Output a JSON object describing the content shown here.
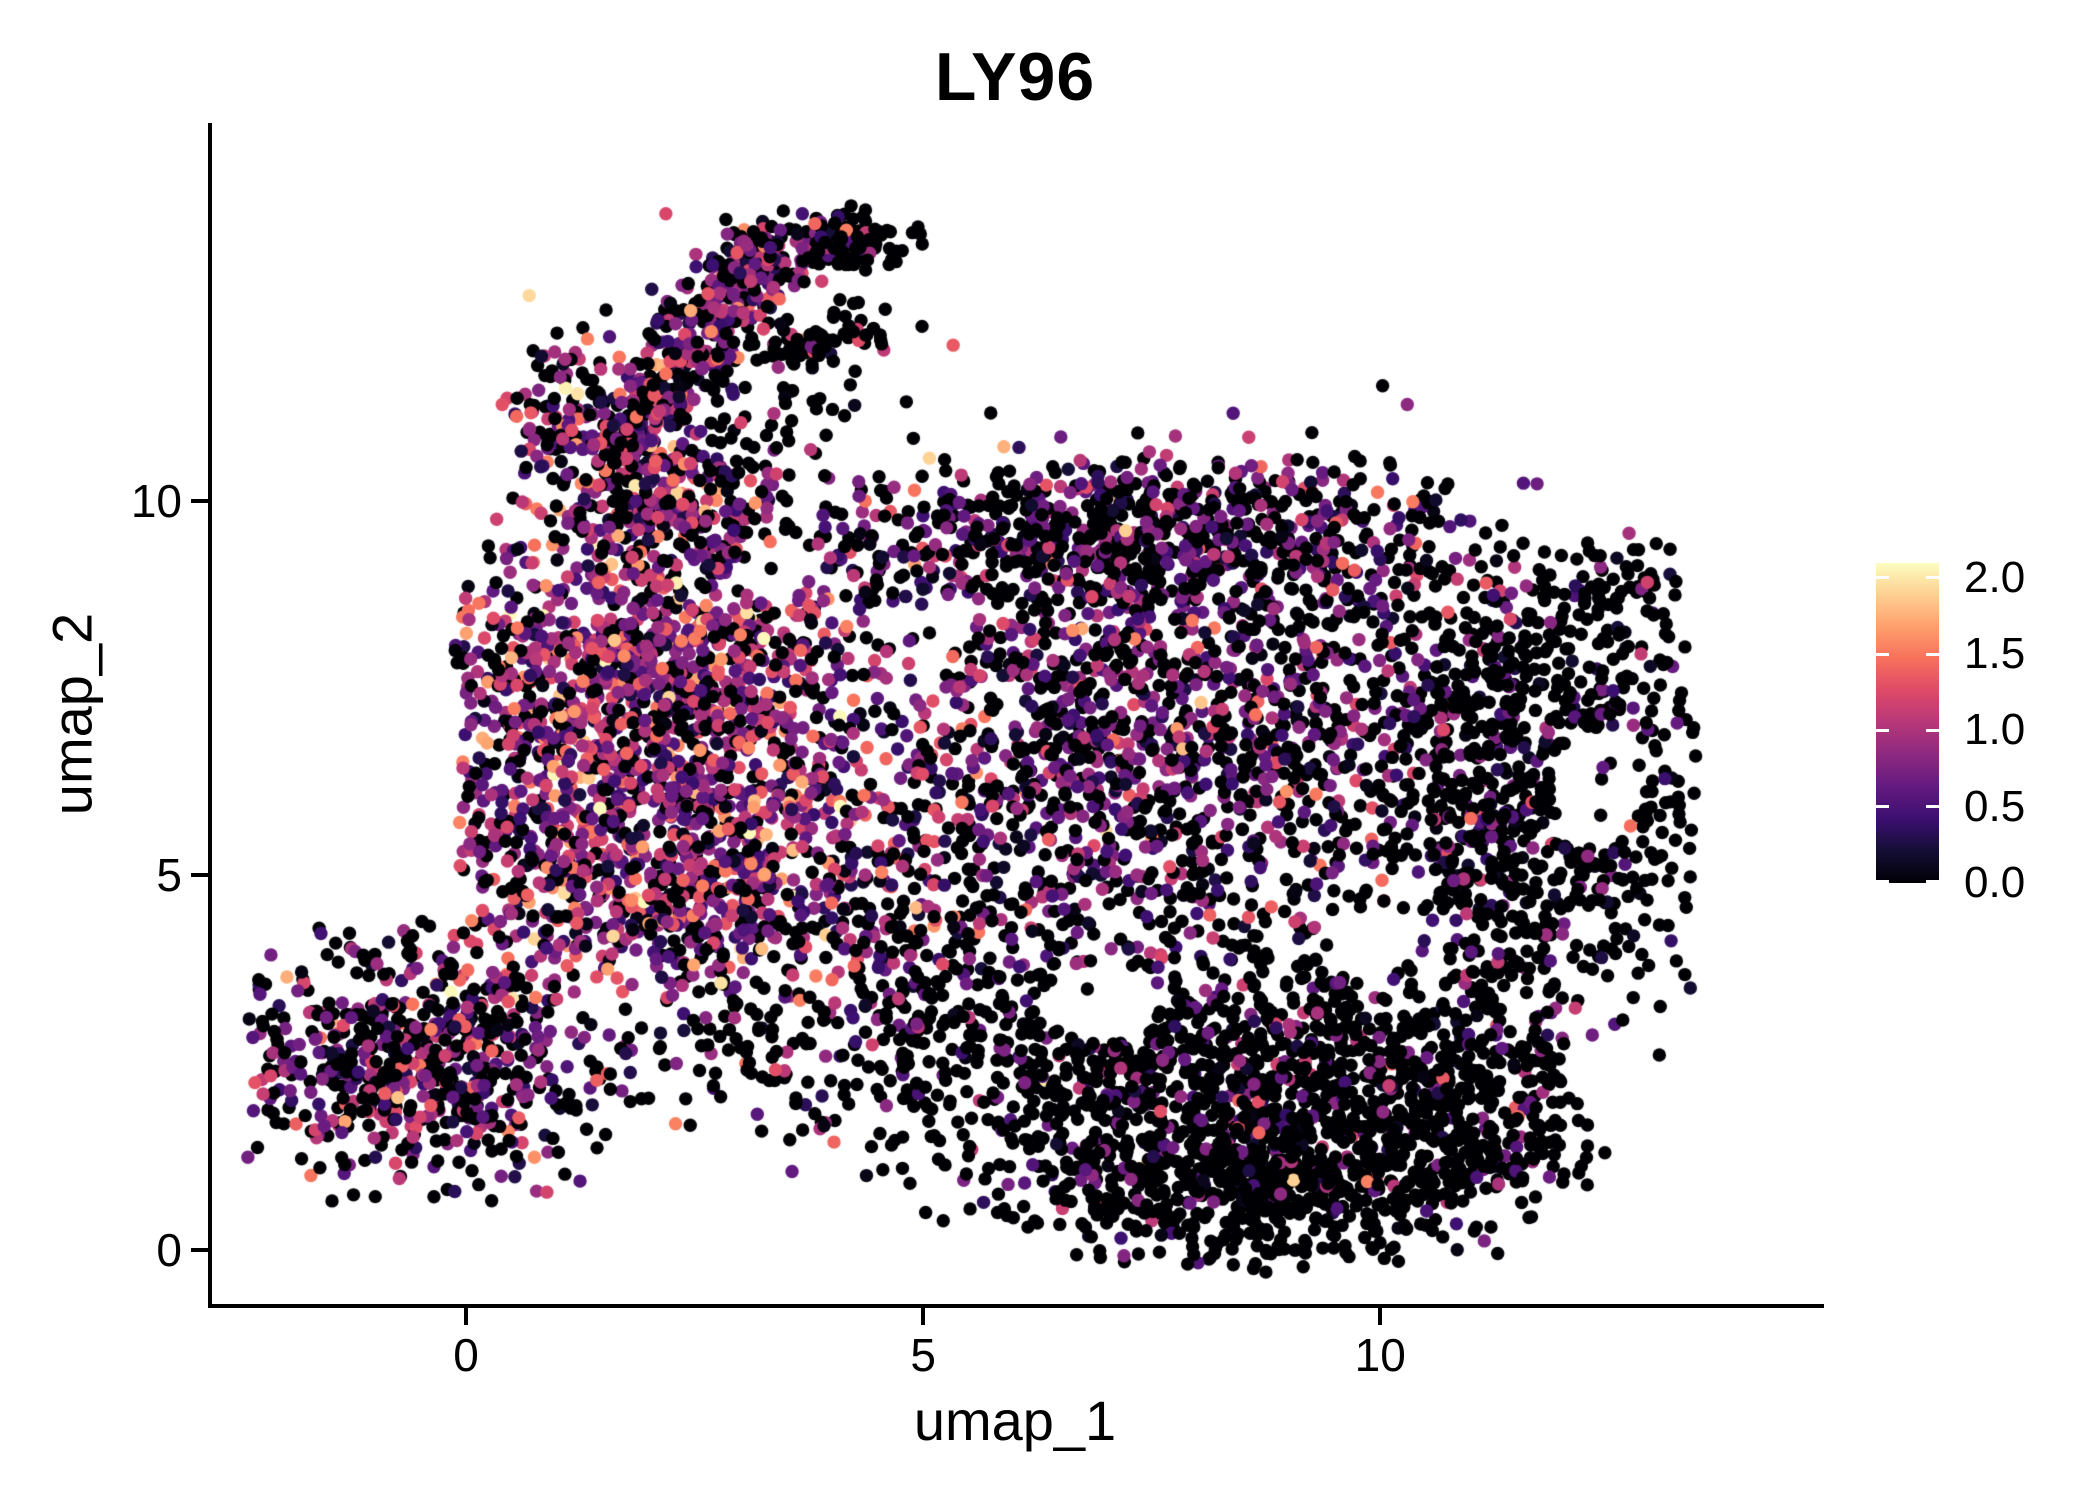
{
  "chart_data": {
    "type": "scatter",
    "title": "LY96",
    "xlabel": "umap_1",
    "ylabel": "umap_2",
    "xlim": [
      -2.8,
      14.81
    ],
    "ylim": [
      -0.75,
      15.04
    ],
    "x_ticks": [
      0,
      5,
      10
    ],
    "x_tick_labels": [
      "0",
      "5",
      "10"
    ],
    "y_ticks": [
      0,
      5,
      10
    ],
    "y_tick_labels": [
      "0",
      "5",
      "10"
    ],
    "grid": "off",
    "legend_position": "right",
    "point_radius_px": 6.7,
    "colorbar": {
      "vmin": 0,
      "vmax": 2.098,
      "ticks": [
        2.0,
        1.5,
        1.0,
        0.5,
        0.0
      ],
      "tick_labels": [
        "2.0",
        "1.5",
        "1.0",
        "0.5",
        "0.0"
      ],
      "colormap": "magma",
      "stops": [
        [
          0.0,
          "#000004"
        ],
        [
          0.1,
          "#140e36"
        ],
        [
          0.2,
          "#3b0f70"
        ],
        [
          0.3,
          "#641a80"
        ],
        [
          0.4,
          "#8c2981"
        ],
        [
          0.5,
          "#b73779"
        ],
        [
          0.6,
          "#de4968"
        ],
        [
          0.7,
          "#f7705c"
        ],
        [
          0.8,
          "#fe9f6d"
        ],
        [
          0.9,
          "#fecf92"
        ],
        [
          1.0,
          "#fcfdbf"
        ]
      ]
    },
    "generator": {
      "seed": 42,
      "value_max": 2.08,
      "edge_cut": {
        "x0": 10.3,
        "y0": 10.6,
        "slope": -0.75,
        "keep_prob": 0.12
      },
      "clusters": [
        {
          "name": "arm-band",
          "shape": "line",
          "n": 420,
          "x1": 1.55,
          "y1": 10.5,
          "x2": 3.3,
          "y2": 13.35,
          "perp": 0.28,
          "zf": 0.32,
          "mu": 0.8,
          "sd": 0.45
        },
        {
          "name": "arm-base",
          "shape": "gauss",
          "n": 170,
          "cx": 1.95,
          "cy": 10.05,
          "sx": 0.55,
          "sy": 0.4,
          "zf": 0.3,
          "mu": 0.9,
          "sd": 0.5
        },
        {
          "name": "hook-top",
          "shape": "line",
          "n": 120,
          "x1": 2.95,
          "y1": 13.3,
          "x2": 4.3,
          "y2": 13.5,
          "perp": 0.2,
          "zf": 0.55,
          "mu": 0.65,
          "sd": 0.35
        },
        {
          "name": "hook-tip",
          "shape": "gauss",
          "n": 60,
          "cx": 4.35,
          "cy": 13.4,
          "sx": 0.25,
          "sy": 0.2,
          "zf": 0.9,
          "mu": 0.5,
          "sd": 0.3
        },
        {
          "name": "hook-scatter",
          "shape": "line",
          "n": 70,
          "x1": 3.45,
          "y1": 11.95,
          "x2": 4.5,
          "y2": 12.35,
          "perp": 0.16,
          "zf": 0.8,
          "mu": 0.8,
          "sd": 0.45
        },
        {
          "name": "upper-sparse",
          "shape": "gauss",
          "n": 100,
          "cx": 3.0,
          "cy": 11.1,
          "sx": 0.85,
          "sy": 0.6,
          "zf": 0.85,
          "mu": 0.6,
          "sd": 0.3
        },
        {
          "name": "spur",
          "shape": "gauss",
          "n": 95,
          "cx": 1.1,
          "cy": 11.25,
          "sx": 0.3,
          "sy": 0.5,
          "zf": 0.42,
          "mu": 0.85,
          "sd": 0.5
        },
        {
          "name": "bridge",
          "shape": "gauss",
          "n": 70,
          "cx": 2.6,
          "cy": 9.75,
          "sx": 0.6,
          "sy": 0.45,
          "zf": 0.6,
          "mu": 0.7,
          "sd": 0.4
        },
        {
          "name": "left-dense-top",
          "shape": "gauss",
          "n": 950,
          "cx": 2.05,
          "cy": 7.7,
          "sx": 1.15,
          "sy": 1.1,
          "zf": 0.22,
          "mu": 0.92,
          "sd": 0.48,
          "clamp": {
            "xmin": -0.1
          }
        },
        {
          "name": "left-dense-bottom",
          "shape": "gauss",
          "n": 850,
          "cx": 2.3,
          "cy": 5.15,
          "sx": 1.3,
          "sy": 0.95,
          "zf": 0.25,
          "mu": 0.88,
          "sd": 0.48,
          "clamp": {
            "xmin": -0.1,
            "ymin": 3.3
          }
        },
        {
          "name": "left-edge",
          "shape": "gauss",
          "n": 130,
          "cx": 0.55,
          "cy": 6.7,
          "sx": 0.4,
          "sy": 1.4,
          "zf": 0.3,
          "mu": 0.85,
          "sd": 0.45,
          "clamp": {
            "xmin": -0.15
          }
        },
        {
          "name": "blob-top-band",
          "shape": "gauss",
          "n": 750,
          "cx": 7.3,
          "cy": 9.55,
          "sx": 1.95,
          "sy": 0.6,
          "zf": 0.55,
          "mu": 0.68,
          "sd": 0.38,
          "clamp": {
            "ymax": 10.6,
            "xmax": 10.8
          }
        },
        {
          "name": "blob-core",
          "shape": "gauss",
          "n": 1600,
          "cx": 7.4,
          "cy": 6.9,
          "sx": 2.05,
          "sy": 1.6,
          "zf": 0.47,
          "mu": 0.72,
          "sd": 0.4,
          "clamp": {
            "xmax": 11.5
          }
        },
        {
          "name": "blob-right",
          "shape": "gauss",
          "n": 800,
          "cx": 11.7,
          "cy": 6.3,
          "sx": 1.0,
          "sy": 1.7,
          "zf": 0.8,
          "mu": 0.55,
          "sd": 0.35,
          "clamp": {
            "xmax": 13.45
          }
        },
        {
          "name": "right-top-clump",
          "shape": "gauss",
          "n": 60,
          "cx": 12.55,
          "cy": 8.85,
          "sx": 0.4,
          "sy": 0.3,
          "zf": 0.85,
          "mu": 0.5,
          "sd": 0.3,
          "noedge": true
        },
        {
          "name": "blob-bottom",
          "shape": "gauss",
          "n": 1350,
          "cx": 8.3,
          "cy": 1.95,
          "sx": 2.0,
          "sy": 1.1,
          "zf": 0.8,
          "mu": 0.62,
          "sd": 0.4,
          "curve": {
            "x0": 8.6,
            "w": 2.6,
            "k": 0.3
          },
          "clamp": {
            "ymin": -0.3,
            "xmin": 4.3,
            "xmax": 12.0
          }
        },
        {
          "name": "bottom-right",
          "shape": "gauss",
          "n": 260,
          "cx": 10.9,
          "cy": 1.7,
          "sx": 0.85,
          "sy": 0.85,
          "zf": 0.85,
          "mu": 0.55,
          "sd": 0.35,
          "clamp": {
            "ymin": 0.2,
            "xmax": 12.3
          }
        },
        {
          "name": "bottom-dense",
          "shape": "gauss",
          "n": 280,
          "cx": 8.6,
          "cy": 0.75,
          "sx": 1.1,
          "sy": 0.5,
          "zf": 0.88,
          "mu": 0.5,
          "sd": 0.3,
          "clamp": {
            "ymin": -0.25
          }
        },
        {
          "name": "bottom-left-cluster",
          "shape": "gauss",
          "n": 620,
          "cx": -0.6,
          "cy": 2.5,
          "sx": 1.0,
          "sy": 0.8,
          "zf": 0.45,
          "mu": 0.8,
          "sd": 0.45,
          "clamp": {
            "xmin": -2.4,
            "ymin": 0.6,
            "ymax": 4.4
          }
        },
        {
          "name": "bottom-left-halo",
          "shape": "gauss",
          "n": 60,
          "cx": -0.4,
          "cy": 2.7,
          "sx": 1.5,
          "sy": 1.2,
          "zf": 0.7,
          "mu": 0.6,
          "sd": 0.35,
          "clamp": {
            "xmin": -2.45,
            "ymin": 0.3,
            "ymax": 4.7
          }
        },
        {
          "name": "connector",
          "shape": "gauss",
          "n": 130,
          "cx": 3.3,
          "cy": 2.5,
          "sx": 1.2,
          "sy": 0.65,
          "zf": 0.72,
          "mu": 0.65,
          "sd": 0.4
        },
        {
          "name": "mid-sparse",
          "shape": "gauss",
          "n": 160,
          "cx": 4.8,
          "cy": 3.9,
          "sx": 1.1,
          "sy": 0.85,
          "zf": 0.62,
          "mu": 0.7,
          "sd": 0.4
        }
      ],
      "holes": [
        {
          "cx": 6.95,
          "cy": 3.3,
          "rx": 0.65,
          "ry": 0.55
        },
        {
          "cx": 12.35,
          "cy": 6.15,
          "rx": 0.5,
          "ry": 0.8
        },
        {
          "cx": 5.05,
          "cy": 8.3,
          "rx": 0.5,
          "ry": 0.42
        },
        {
          "cx": 9.9,
          "cy": 4.15,
          "rx": 0.55,
          "ry": 0.5
        },
        {
          "cx": 3.35,
          "cy": 9.0,
          "rx": 0.4,
          "ry": 0.35
        }
      ],
      "highlights": [
        {
          "x": 1.09,
          "y": 11.5,
          "v": 2.05
        },
        {
          "x": 1.85,
          "y": 10.2,
          "v": 2.0
        },
        {
          "x": 9.05,
          "y": 0.93,
          "v": 1.9
        },
        {
          "x": 9.86,
          "y": 0.91,
          "v": 1.55
        },
        {
          "x": 7.0,
          "y": 5.6,
          "v": 1.95
        }
      ]
    }
  }
}
